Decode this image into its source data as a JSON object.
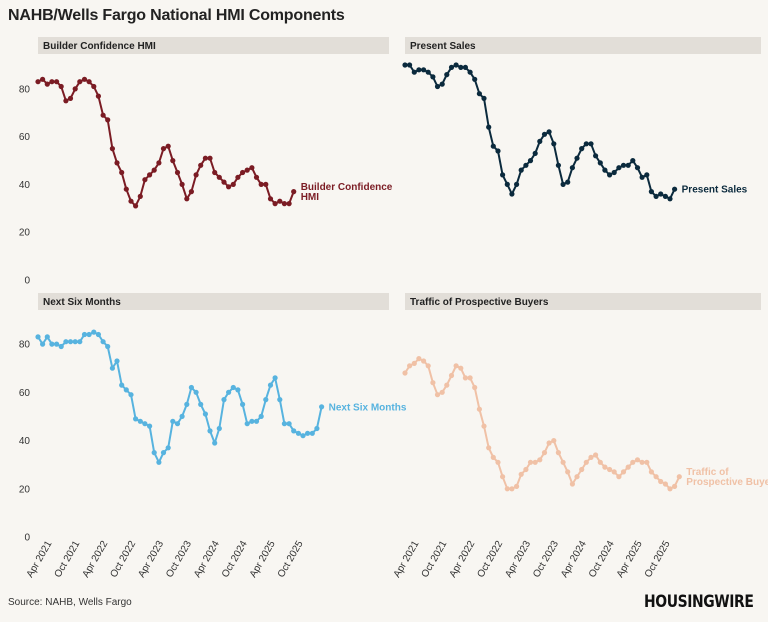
{
  "title": "NAHB/Wells Fargo National HMI Components",
  "source": "Source: NAHB, Wells Fargo",
  "brand": "HOUSINGWIRE",
  "chart_data": [
    {
      "type": "line",
      "panel_title": "Builder Confidence HMI",
      "series": [
        {
          "name": "Builder Confidence HMI",
          "label_lines": [
            "Builder Confidence",
            "HMI"
          ],
          "color": "#7b1c24",
          "x_start": "2021-01",
          "values": [
            83,
            84,
            82,
            83,
            83,
            81,
            75,
            76,
            80,
            83,
            84,
            83,
            81,
            77,
            69,
            67,
            55,
            49,
            45,
            38,
            33,
            31,
            35,
            42,
            44,
            46,
            49,
            55,
            56,
            50,
            45,
            40,
            34,
            37,
            44,
            48,
            51,
            51,
            45,
            43,
            41,
            39,
            40,
            43,
            45,
            46,
            47,
            43,
            40,
            40,
            34,
            32,
            33,
            32,
            32,
            37
          ]
        }
      ],
      "ylim": [
        0,
        90
      ],
      "yticks": [
        0,
        20,
        40,
        60,
        80
      ],
      "xticks": [
        "Apr 2021",
        "Oct 2021",
        "Apr 2022",
        "Oct 2022",
        "Apr 2023",
        "Oct 2023",
        "Apr 2024",
        "Oct 2024",
        "Apr 2025",
        "Oct 2025"
      ]
    },
    {
      "type": "line",
      "panel_title": "Present Sales",
      "series": [
        {
          "name": "Present Sales",
          "label_lines": [
            "Present Sales"
          ],
          "color": "#0b2a3d",
          "x_start": "2021-01",
          "values": [
            90,
            90,
            87,
            88,
            88,
            87,
            85,
            81,
            82,
            86,
            89,
            90,
            89,
            89,
            87,
            84,
            78,
            76,
            64,
            56,
            54,
            44,
            40,
            36,
            40,
            46,
            48,
            50,
            53,
            58,
            61,
            62,
            57,
            48,
            40,
            41,
            47,
            51,
            55,
            57,
            57,
            52,
            49,
            46,
            44,
            45,
            47,
            48,
            48,
            50,
            47,
            43,
            44,
            37,
            35,
            36,
            35,
            34,
            38
          ]
        }
      ],
      "ylim": [
        0,
        90
      ],
      "yticks": [
        0,
        20,
        40,
        60,
        80
      ],
      "xticks": [
        "Apr 2021",
        "Oct 2021",
        "Apr 2022",
        "Oct 2022",
        "Apr 2023",
        "Oct 2023",
        "Apr 2024",
        "Oct 2024",
        "Apr 2025",
        "Oct 2025"
      ]
    },
    {
      "type": "line",
      "panel_title": "Next Six Months",
      "series": [
        {
          "name": "Next Six Months",
          "label_lines": [
            "Next Six Months"
          ],
          "color": "#57b3df",
          "x_start": "2021-01",
          "values": [
            83,
            80,
            83,
            80,
            80,
            79,
            81,
            81,
            81,
            81,
            84,
            84,
            85,
            84,
            81,
            79,
            70,
            73,
            63,
            61,
            59,
            49,
            48,
            47,
            46,
            35,
            31,
            35,
            37,
            48,
            47,
            50,
            55,
            62,
            60,
            55,
            51,
            44,
            39,
            45,
            57,
            60,
            62,
            61,
            55,
            47,
            48,
            48,
            50,
            57,
            63,
            66,
            57,
            47,
            47,
            44,
            43,
            42,
            43,
            43,
            45,
            54
          ]
        }
      ],
      "ylim": [
        0,
        90
      ],
      "yticks": [
        0,
        20,
        40,
        60,
        80
      ],
      "xticks": [
        "Apr 2021",
        "Oct 2021",
        "Apr 2022",
        "Oct 2022",
        "Apr 2023",
        "Oct 2023",
        "Apr 2024",
        "Oct 2024",
        "Apr 2025",
        "Oct 2025"
      ]
    },
    {
      "type": "line",
      "panel_title": "Traffic of Prospective Buyers",
      "series": [
        {
          "name": "Traffic of Prospective Buyers",
          "label_lines": [
            "Traffic of",
            "Prospective Buyers"
          ],
          "color": "#f0c1a6",
          "x_start": "2021-01",
          "values": [
            68,
            71,
            72,
            74,
            73,
            71,
            64,
            59,
            60,
            63,
            67,
            71,
            70,
            66,
            66,
            62,
            53,
            46,
            37,
            33,
            31,
            25,
            20,
            20,
            21,
            26,
            28,
            31,
            31,
            32,
            35,
            39,
            40,
            35,
            31,
            27,
            22,
            25,
            28,
            31,
            33,
            34,
            31,
            29,
            28,
            27,
            25,
            27,
            29,
            31,
            32,
            31,
            31,
            27,
            25,
            23,
            22,
            20,
            21,
            25
          ]
        }
      ],
      "ylim": [
        0,
        90
      ],
      "yticks": [
        0,
        20,
        40,
        60,
        80
      ],
      "xticks": [
        "Apr 2021",
        "Oct 2021",
        "Apr 2022",
        "Oct 2022",
        "Apr 2023",
        "Oct 2023",
        "Apr 2024",
        "Oct 2024",
        "Apr 2025",
        "Oct 2025"
      ]
    }
  ]
}
